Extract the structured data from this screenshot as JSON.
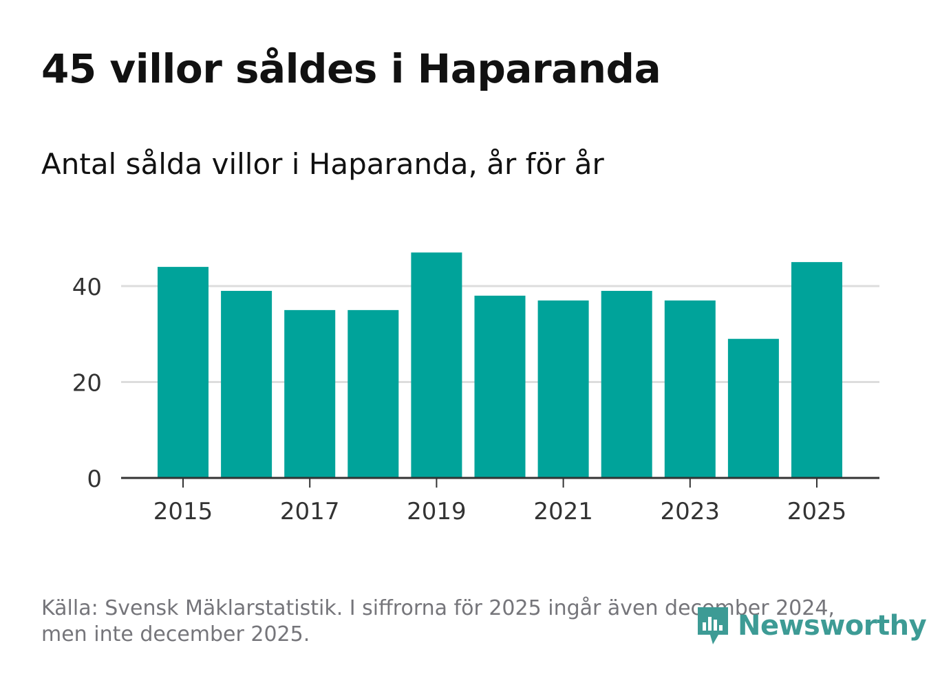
{
  "header": {
    "title": "45 villor såldes i Haparanda",
    "subtitle": "Antal sålda villor i Haparanda, år för år"
  },
  "footer": {
    "source_line1": "Källa: Svensk Mäklarstatistik. I siffrorna för 2025 ingår även december 2024,",
    "source_line2": "men inte december 2025."
  },
  "logo": {
    "text": "Newsworthy",
    "icon": "newsworthy-logo-icon",
    "color": "#3d9b95"
  },
  "colors": {
    "bar": "#00a39a",
    "grid": "#dddddd",
    "axis": "#333333",
    "tick_text": "#333333"
  },
  "chart_data": {
    "type": "bar",
    "title": "45 villor såldes i Haparanda",
    "subtitle": "Antal sålda villor i Haparanda, år för år",
    "categories": [
      "2015",
      "2016",
      "2017",
      "2018",
      "2019",
      "2020",
      "2021",
      "2022",
      "2023",
      "2024",
      "2025"
    ],
    "values": [
      44,
      39,
      35,
      35,
      47,
      38,
      37,
      39,
      37,
      29,
      45
    ],
    "x_tick_labels": [
      "2015",
      "2017",
      "2019",
      "2021",
      "2023",
      "2025"
    ],
    "y_ticks": [
      0,
      20,
      40
    ],
    "ylim": [
      0,
      50
    ],
    "xlabel": "",
    "ylabel": "",
    "grid": true,
    "legend": "none"
  }
}
